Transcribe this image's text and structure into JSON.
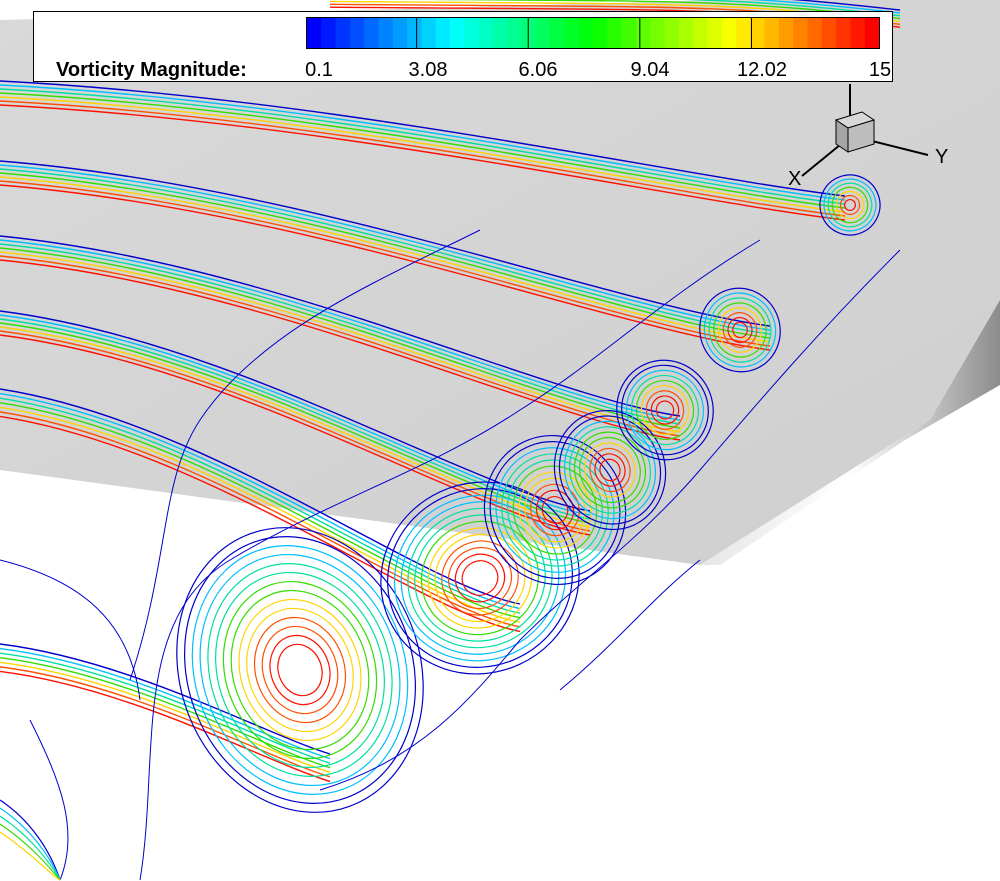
{
  "legend": {
    "title": "Vorticity Magnitude:",
    "ticks": [
      "0.1",
      "3.08",
      "6.06",
      "9.04",
      "12.02",
      "15"
    ],
    "colors": [
      "#0000ff",
      "#00ffff",
      "#00ff00",
      "#ffff00",
      "#ff0000"
    ]
  },
  "axes": {
    "x_label": "X",
    "y_label": "Y"
  },
  "scene": {
    "surface_color": "#d5d5d5",
    "contour_colors": [
      "#0000cc",
      "#00bfff",
      "#00e0a0",
      "#33dd00",
      "#ffd400",
      "#ff5000",
      "#ff1000"
    ]
  }
}
